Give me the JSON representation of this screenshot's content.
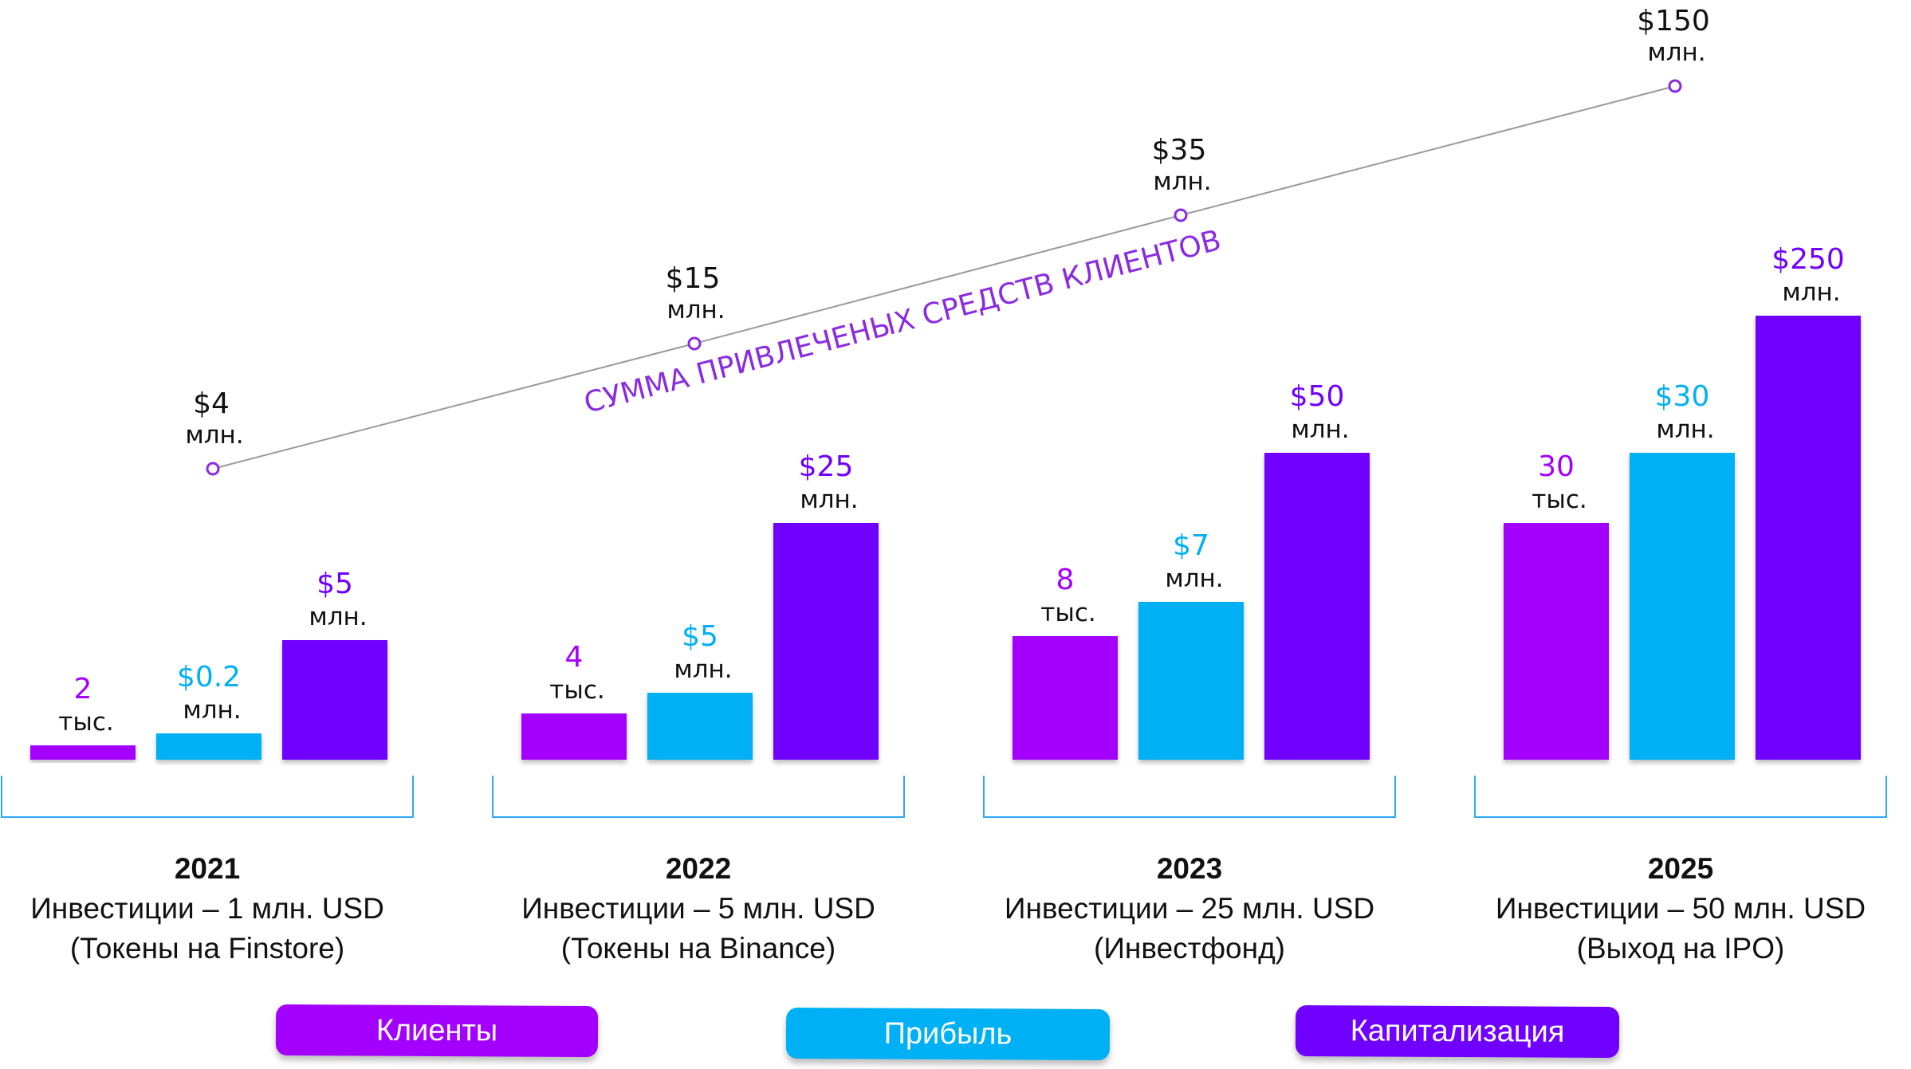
{
  "chart_data": {
    "type": "bar",
    "colors": {
      "clients": "#a300ff",
      "profit": "#00b0f5",
      "capitalization": "#7000ff",
      "line": "#9a9a9a",
      "line_marker": "#8a2be2",
      "line_label": "#111111"
    },
    "legend": [
      "Клиенты",
      "Прибыль",
      "Капитализация"
    ],
    "groups": [
      {
        "year": "2021",
        "desc1": "Инвестиции – 1 млн. USD",
        "desc2": "(Токены на Finstore)"
      },
      {
        "year": "2022",
        "desc1": "Инвестиции – 5 млн. USD",
        "desc2": "(Токены на Binance)"
      },
      {
        "year": "2023",
        "desc1": "Инвестиции – 25 млн. USD",
        "desc2": "(Инвестфонд)"
      },
      {
        "year": "2025",
        "desc1": "Инвестиции – 50 млн. USD",
        "desc2": "(Выход на IPO)"
      }
    ],
    "series": [
      {
        "name": "Клиенты",
        "values": [
          2,
          4,
          8,
          30
        ],
        "value_labels": [
          "2",
          "4",
          "8",
          "30"
        ],
        "unit_label": "тыс."
      },
      {
        "name": "Прибыль",
        "values": [
          0.2,
          5,
          7,
          30
        ],
        "value_labels": [
          "$0.2",
          "$5",
          "$7",
          "$30"
        ],
        "unit_label": "млн."
      },
      {
        "name": "Капитализация",
        "values": [
          5,
          25,
          50,
          250
        ],
        "value_labels": [
          "$5",
          "$25",
          "$50",
          "$250"
        ],
        "unit_label": "млн."
      }
    ],
    "line_series": {
      "name": "СУММА ПРИВЛЕЧЕНЫХ СРЕДСТВ КЛИЕНТОВ",
      "values": [
        4,
        15,
        35,
        150
      ],
      "value_labels": [
        "$4",
        "$15",
        "$35",
        "$150"
      ],
      "unit_label": "млн."
    }
  }
}
